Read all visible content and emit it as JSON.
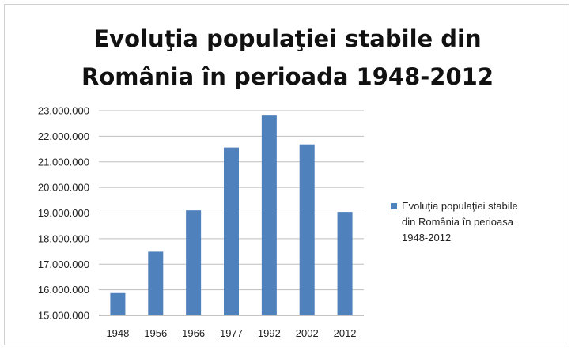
{
  "chart_data": {
    "type": "bar",
    "title_lines": [
      "Evoluţia populaţiei stabile din",
      "România în perioada 1948-2012"
    ],
    "categories": [
      "1948",
      "1956",
      "1966",
      "1977",
      "1992",
      "2002",
      "2012"
    ],
    "series": [
      {
        "name_lines": [
          "Evoluţia populaţiei stabile",
          "din România în perioasa",
          "1948-2012"
        ],
        "values": [
          15872624,
          17489450,
          19103163,
          21559910,
          22810035,
          21680974,
          19042936
        ],
        "color": "#4f81bd"
      }
    ],
    "ylim": [
      15000000,
      23000000
    ],
    "y_ticks": [
      "15.000.000",
      "16.000.000",
      "17.000.000",
      "18.000.000",
      "19.000.000",
      "20.000.000",
      "21.000.000",
      "22.000.000",
      "23.000.000"
    ],
    "grid": true,
    "legend": "right"
  }
}
